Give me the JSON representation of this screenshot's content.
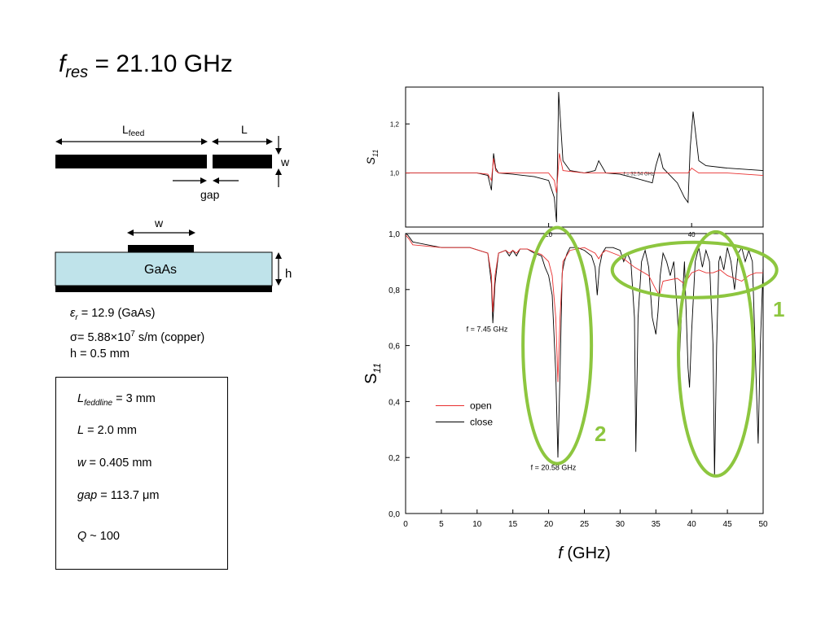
{
  "title": {
    "symbol": "f",
    "subscript": "res",
    "rest": " = 21.10 GHz"
  },
  "diagram": {
    "feed_label": "L",
    "feed_sub": "feed",
    "l_label": "L",
    "w_label_side": "w",
    "gap_label": "gap",
    "w_label_top": "w",
    "substrate_label": "GaAs",
    "h_label": "h"
  },
  "params": {
    "eps_sym": "ε",
    "eps_sub": "r",
    "eps_rest": " = 12.9 (GaAs)",
    "sigma_text": "σ= 5.88×10",
    "sigma_exp": "7",
    "sigma_rest": " s/m (copper)",
    "h_text": "h = 0.5 mm"
  },
  "infobox": {
    "r1_sym": "L",
    "r1_sub": "feddline",
    "r1_rest": " = 3 mm",
    "r2_sym": "L",
    "r2_rest": " = 2.0 mm",
    "r3_sym": "w",
    "r3_rest": " = 0.405 mm",
    "r4_sym": "gap",
    "r4_rest": " = 113.7 μm",
    "r5_sym": "Q",
    "r5_rest": " ~ 100"
  },
  "chart_data": [
    {
      "type": "line",
      "panel": "top-inset",
      "ylabel": "S",
      "ylabel_sub": "11",
      "xlim": [
        0,
        50
      ],
      "ylim": [
        0.78,
        1.35
      ],
      "yticks": [
        1.0,
        1.2
      ],
      "ytick_labels": [
        "1,0",
        "1,2"
      ],
      "xticks": [
        20,
        40
      ],
      "xtick_labels": [
        "20",
        "40"
      ],
      "annotation": "f = 32.54 GHz",
      "series": [
        {
          "color": "#000000",
          "x": [
            0,
            10,
            11.5,
            12,
            12.3,
            12.6,
            13,
            15,
            18,
            20,
            20.8,
            21.1,
            21.4,
            22,
            23,
            25,
            26.5,
            27,
            28,
            30,
            32,
            34.5,
            35,
            35.5,
            36,
            38,
            39,
            39.5,
            39.8,
            40.2,
            41,
            42,
            45,
            50
          ],
          "y": [
            1.0,
            1.0,
            0.99,
            0.93,
            1.08,
            1.02,
            1.0,
            0.995,
            0.985,
            0.97,
            0.9,
            0.8,
            1.33,
            1.05,
            1.01,
            1.0,
            1.01,
            1.05,
            1.0,
            0.995,
            0.98,
            0.96,
            1.03,
            1.08,
            1.02,
            0.96,
            0.9,
            0.88,
            1.1,
            1.25,
            1.05,
            1.03,
            1.02,
            1.01
          ]
        },
        {
          "color": "#e83030",
          "x": [
            0,
            10,
            11.5,
            12,
            12.3,
            12.6,
            13,
            20,
            20.8,
            21.1,
            21.5,
            22,
            25,
            27,
            28,
            30,
            35,
            38,
            39.5,
            40,
            41,
            45,
            50
          ],
          "y": [
            1.0,
            1.0,
            0.995,
            0.97,
            1.06,
            1.01,
            1.0,
            1.0,
            0.97,
            0.92,
            1.08,
            1.01,
            1.0,
            1.0,
            1.0,
            1.0,
            1.0,
            1.0,
            1.0,
            1.02,
            1.0,
            1.0,
            0.99
          ]
        }
      ]
    },
    {
      "type": "line",
      "panel": "main",
      "xlabel": "f",
      "xlabel_rest": " (GHz)",
      "ylabel": "S",
      "ylabel_sub": "11",
      "xlim": [
        0,
        50
      ],
      "ylim": [
        0,
        1.0
      ],
      "xticks": [
        0,
        5,
        10,
        15,
        20,
        25,
        30,
        35,
        40,
        45,
        50
      ],
      "xtick_labels": [
        "0",
        "5",
        "10",
        "15",
        "20",
        "25",
        "30",
        "35",
        "40",
        "45",
        "50"
      ],
      "yticks": [
        0.0,
        0.2,
        0.4,
        0.6,
        0.8,
        1.0
      ],
      "ytick_labels": [
        "0,0",
        "0,2",
        "0,4",
        "0,6",
        "0,8",
        "1,0"
      ],
      "legend": [
        {
          "name": "open",
          "color": "#e83030"
        },
        {
          "name": "close",
          "color": "#000000"
        }
      ],
      "legend_position": "lower-left",
      "annotations": [
        {
          "text": "f = 7.45 GHz",
          "x": 8.5,
          "y": 0.65
        },
        {
          "text": "f = 20.58 GHz",
          "x": 17.5,
          "y": 0.155
        }
      ],
      "circles": [
        {
          "label": "1",
          "color": "#8dc63f"
        },
        {
          "label": "2",
          "color": "#8dc63f"
        }
      ],
      "series": [
        {
          "name": "close",
          "color": "#000000",
          "x": [
            0,
            0.3,
            1,
            5,
            9,
            11.5,
            12,
            12.2,
            12.5,
            13,
            14,
            14.5,
            15,
            15.5,
            16,
            17,
            18,
            19,
            19.5,
            20,
            20.5,
            21,
            21.3,
            21.6,
            21.9,
            22.2,
            22.6,
            23,
            24,
            25,
            26,
            26.5,
            26.8,
            27.1,
            27.5,
            28,
            29,
            30,
            30.5,
            31,
            31.5,
            32,
            32.2,
            32.5,
            33,
            33.5,
            34,
            34.5,
            35,
            35.3,
            35.6,
            36,
            36.5,
            37,
            37.5,
            38,
            38.3,
            38.6,
            39,
            39.5,
            39.7,
            40,
            40.5,
            41,
            41.5,
            42,
            42.5,
            43,
            43.2,
            43.5,
            43.8,
            44,
            44.5,
            45,
            45.5,
            46,
            46.5,
            47,
            47.5,
            48,
            48.5,
            49,
            49.3,
            49.6,
            50
          ],
          "y": [
            1.0,
            0.995,
            0.97,
            0.95,
            0.95,
            0.93,
            0.82,
            0.68,
            0.82,
            0.93,
            0.94,
            0.92,
            0.94,
            0.92,
            0.945,
            0.945,
            0.93,
            0.92,
            0.88,
            0.85,
            0.78,
            0.5,
            0.2,
            0.5,
            0.86,
            0.9,
            0.93,
            0.95,
            0.95,
            0.94,
            0.92,
            0.88,
            0.78,
            0.88,
            0.93,
            0.95,
            0.95,
            0.94,
            0.9,
            0.93,
            0.9,
            0.7,
            0.22,
            0.7,
            0.9,
            0.94,
            0.88,
            0.7,
            0.64,
            0.72,
            0.85,
            0.93,
            0.9,
            0.85,
            0.9,
            0.72,
            0.56,
            0.72,
            0.9,
            0.52,
            0.45,
            0.65,
            0.9,
            0.95,
            0.88,
            0.94,
            0.9,
            0.6,
            0.13,
            0.6,
            0.9,
            0.92,
            0.87,
            0.95,
            0.9,
            0.8,
            0.93,
            0.95,
            0.9,
            0.94,
            0.9,
            0.5,
            0.25,
            0.6,
            0.88
          ]
        },
        {
          "name": "open",
          "color": "#e83030",
          "x": [
            0,
            0.5,
            1,
            5,
            9,
            11.5,
            12,
            12.2,
            12.5,
            13,
            14,
            14.5,
            15,
            15.5,
            16,
            17,
            18,
            19,
            20,
            20.5,
            21,
            21.3,
            21.6,
            22,
            23,
            25,
            26.5,
            27,
            27.5,
            28,
            30,
            32,
            34,
            35,
            35.5,
            36,
            38,
            39,
            39.5,
            40,
            41,
            42,
            43,
            44,
            45,
            46,
            47,
            48,
            49,
            50
          ],
          "y": [
            0.995,
            0.98,
            0.96,
            0.95,
            0.95,
            0.93,
            0.85,
            0.72,
            0.85,
            0.93,
            0.94,
            0.93,
            0.94,
            0.93,
            0.945,
            0.945,
            0.935,
            0.925,
            0.9,
            0.85,
            0.7,
            0.47,
            0.7,
            0.9,
            0.94,
            0.95,
            0.93,
            0.91,
            0.93,
            0.94,
            0.92,
            0.88,
            0.85,
            0.8,
            0.78,
            0.83,
            0.84,
            0.82,
            0.84,
            0.86,
            0.87,
            0.86,
            0.86,
            0.87,
            0.85,
            0.84,
            0.83,
            0.85,
            0.86,
            0.86
          ]
        }
      ]
    }
  ]
}
